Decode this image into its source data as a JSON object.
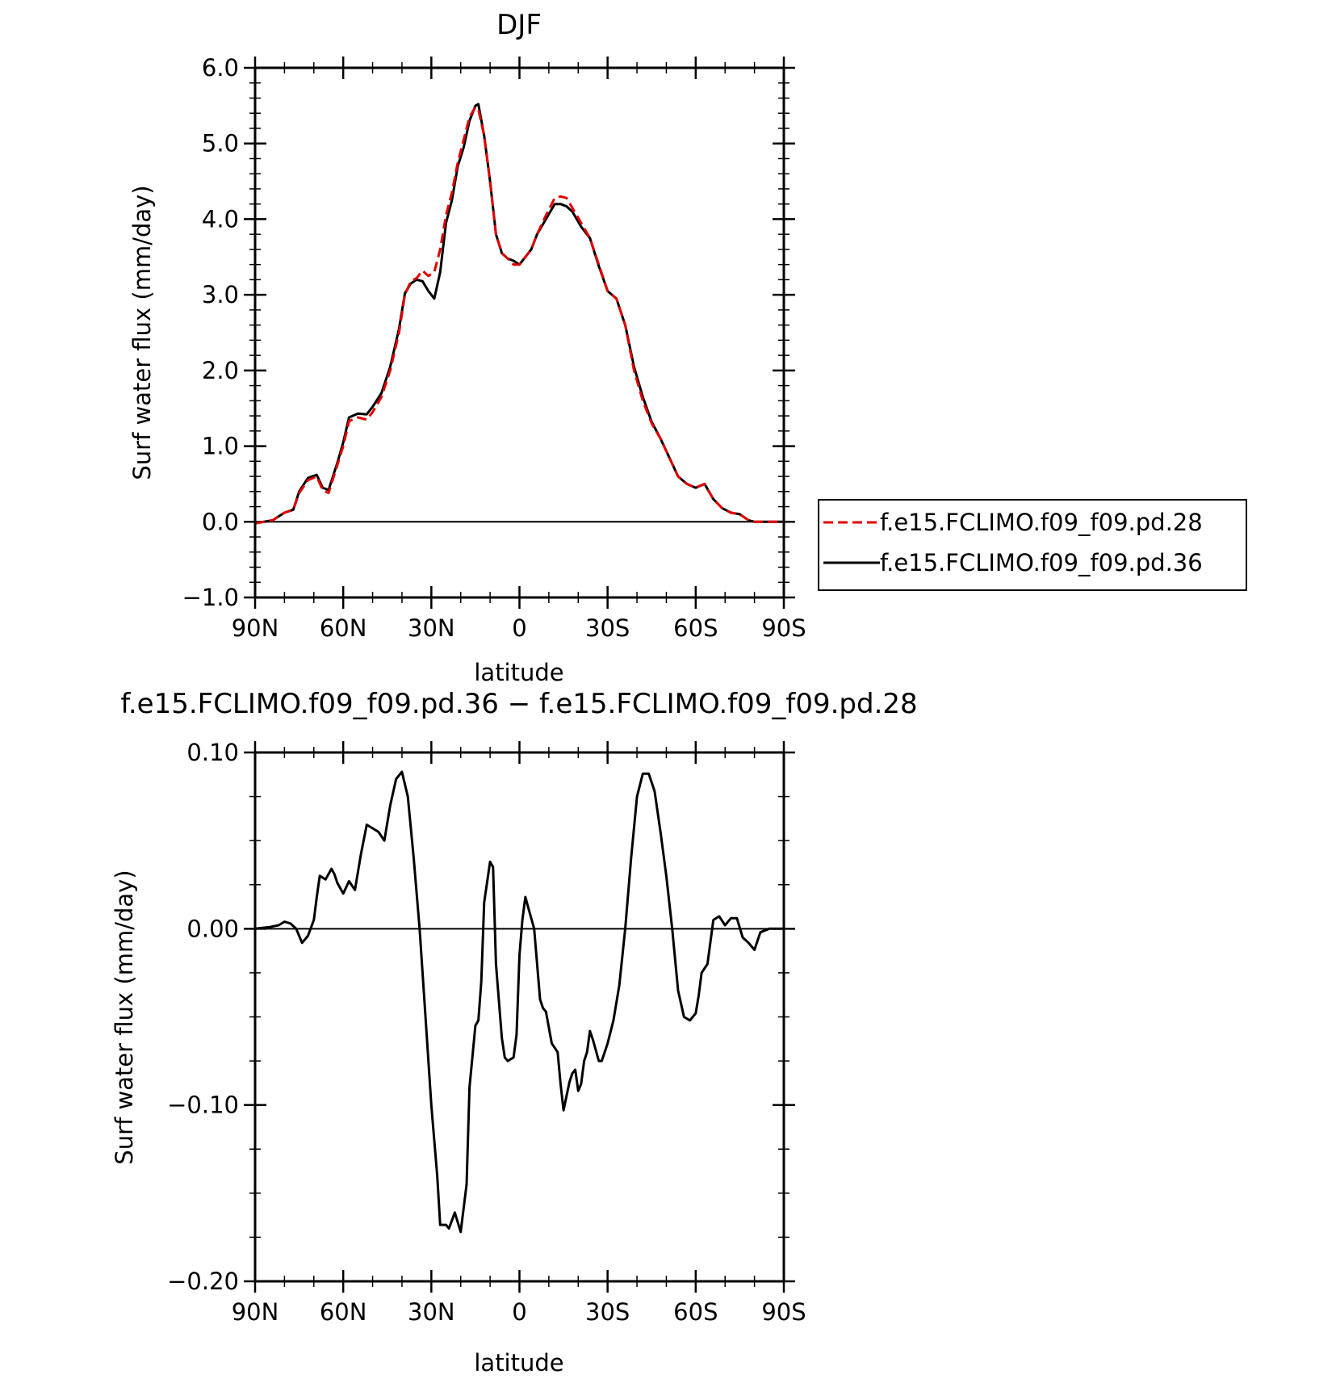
{
  "chart_data": [
    {
      "type": "line",
      "title": "DJF",
      "xlabel": "latitude",
      "ylabel": "Surf water flux (mm/day)",
      "xlim": [
        90,
        -90
      ],
      "ylim": [
        -1.0,
        6.0
      ],
      "yticks": [
        -1.0,
        0.0,
        1.0,
        2.0,
        3.0,
        4.0,
        5.0,
        6.0
      ],
      "ytick_labels": [
        "−1.0",
        "0.0",
        "1.0",
        "2.0",
        "3.0",
        "4.0",
        "5.0",
        "6.0"
      ],
      "xticks": [
        90,
        60,
        30,
        0,
        -30,
        -60,
        -90
      ],
      "xtick_labels": [
        "90N",
        "60N",
        "30N",
        "0",
        "30S",
        "60S",
        "90S"
      ],
      "legend_position": "right",
      "grid": false,
      "series": [
        {
          "name": "f.e15.FCLIMO.f09_f09.pd.28",
          "color": "#e00000",
          "dash": "dashed",
          "x": [
            90,
            84,
            80,
            77,
            75,
            72,
            69,
            67,
            65,
            62,
            60,
            58,
            55,
            52,
            50,
            47,
            44,
            41,
            39,
            37,
            35,
            33,
            31,
            29,
            27,
            25,
            23,
            21,
            19,
            17,
            15,
            14,
            12,
            10,
            8,
            6,
            4,
            2,
            0,
            -2,
            -4,
            -6,
            -9,
            -12,
            -14,
            -16,
            -18,
            -21,
            -24,
            -27,
            -30,
            -33,
            -36,
            -39,
            -42,
            -45,
            -48,
            -51,
            -54,
            -57,
            -60,
            -63,
            -66,
            -69,
            -72,
            -75,
            -78,
            -80,
            -82,
            -90
          ],
          "y": [
            -0.02,
            0.02,
            0.12,
            0.16,
            0.38,
            0.55,
            0.6,
            0.42,
            0.38,
            0.75,
            1.0,
            1.33,
            1.38,
            1.35,
            1.45,
            1.65,
            2.0,
            2.5,
            3.0,
            3.18,
            3.22,
            3.32,
            3.25,
            3.3,
            3.6,
            4.05,
            4.35,
            4.75,
            5.05,
            5.35,
            5.48,
            5.45,
            5.1,
            4.5,
            3.8,
            3.55,
            3.48,
            3.4,
            3.4,
            3.5,
            3.6,
            3.8,
            4.05,
            4.28,
            4.3,
            4.28,
            4.15,
            3.95,
            3.75,
            3.4,
            3.05,
            2.95,
            2.6,
            2.0,
            1.6,
            1.3,
            1.1,
            0.85,
            0.6,
            0.5,
            0.45,
            0.5,
            0.3,
            0.18,
            0.12,
            0.1,
            0.02,
            0.0,
            0.0,
            0.0
          ]
        },
        {
          "name": "f.e15.FCLIMO.f09_f09.pd.36",
          "color": "#000000",
          "dash": "solid",
          "x": [
            90,
            84,
            80,
            77,
            75,
            72,
            69,
            67,
            65,
            62,
            60,
            58,
            55,
            52,
            50,
            47,
            44,
            41,
            39,
            37,
            35,
            33,
            31,
            29,
            27,
            25,
            23,
            21,
            19,
            17,
            15,
            14,
            12,
            10,
            8,
            6,
            4,
            2,
            0,
            -2,
            -4,
            -6,
            -9,
            -12,
            -14,
            -16,
            -18,
            -21,
            -24,
            -27,
            -30,
            -33,
            -36,
            -39,
            -42,
            -45,
            -48,
            -51,
            -54,
            -57,
            -60,
            -63,
            -66,
            -69,
            -72,
            -75,
            -78,
            -80,
            -82,
            -90
          ],
          "y": [
            -0.02,
            0.02,
            0.12,
            0.16,
            0.4,
            0.58,
            0.62,
            0.45,
            0.42,
            0.78,
            1.05,
            1.38,
            1.43,
            1.42,
            1.52,
            1.7,
            2.05,
            2.55,
            3.02,
            3.15,
            3.2,
            3.18,
            3.05,
            2.95,
            3.3,
            3.95,
            4.25,
            4.7,
            4.95,
            5.3,
            5.5,
            5.52,
            5.1,
            4.5,
            3.8,
            3.55,
            3.48,
            3.45,
            3.4,
            3.5,
            3.6,
            3.8,
            4.0,
            4.2,
            4.2,
            4.17,
            4.1,
            3.9,
            3.75,
            3.38,
            3.05,
            2.95,
            2.6,
            2.05,
            1.65,
            1.32,
            1.1,
            0.85,
            0.6,
            0.5,
            0.45,
            0.5,
            0.3,
            0.18,
            0.12,
            0.1,
            0.02,
            0.0,
            0.0,
            0.0
          ]
        }
      ]
    },
    {
      "type": "line",
      "title": "f.e15.FCLIMO.f09_f09.pd.36 − f.e15.FCLIMO.f09_f09.pd.28",
      "xlabel": "latitude",
      "ylabel": "Surf water flux (mm/day)",
      "xlim": [
        90,
        -90
      ],
      "ylim": [
        -0.2,
        0.1
      ],
      "yticks": [
        -0.2,
        -0.1,
        0.0,
        0.1
      ],
      "ytick_labels": [
        "−0.20",
        "−0.10",
        "0.00",
        "0.10"
      ],
      "xticks": [
        90,
        60,
        30,
        0,
        -30,
        -60,
        -90
      ],
      "xtick_labels": [
        "90N",
        "60N",
        "30N",
        "0",
        "30S",
        "60S",
        "90S"
      ],
      "grid": false,
      "series": [
        {
          "color": "#000000",
          "dash": "solid",
          "x": [
            90,
            85,
            82,
            80,
            78,
            76,
            74,
            72,
            70,
            69,
            68,
            66,
            64,
            63,
            62,
            60,
            58,
            56,
            54,
            52,
            50,
            49,
            48,
            46,
            44,
            42,
            40,
            38,
            36,
            34,
            32,
            30,
            28,
            27,
            26,
            25,
            24,
            22,
            20,
            18,
            17,
            15,
            14,
            13,
            12,
            10,
            9,
            8,
            6,
            5,
            4,
            2,
            1,
            0,
            -1,
            -2,
            -3,
            -5,
            -7,
            -8,
            -9,
            -11,
            -13,
            -14,
            -15,
            -17,
            -18,
            -19,
            -20,
            -21,
            -22,
            -23,
            -24,
            -25,
            -27,
            -28,
            -30,
            -32,
            -34,
            -36,
            -38,
            -40,
            -42,
            -44,
            -46,
            -48,
            -50,
            -52,
            -54,
            -56,
            -58,
            -60,
            -61,
            -62,
            -64,
            -66,
            -68,
            -70,
            -72,
            -74,
            -76,
            -78,
            -80,
            -82,
            -85,
            -90
          ],
          "y": [
            0.0,
            0.001,
            0.002,
            0.004,
            0.003,
            0.0,
            -0.008,
            -0.004,
            0.005,
            0.018,
            0.03,
            0.028,
            0.034,
            0.031,
            0.026,
            0.02,
            0.027,
            0.022,
            0.042,
            0.059,
            0.057,
            0.056,
            0.055,
            0.05,
            0.07,
            0.085,
            0.089,
            0.075,
            0.04,
            0.0,
            -0.05,
            -0.1,
            -0.14,
            -0.168,
            -0.168,
            -0.168,
            -0.17,
            -0.161,
            -0.172,
            -0.145,
            -0.09,
            -0.055,
            -0.052,
            -0.03,
            0.015,
            0.038,
            0.035,
            -0.02,
            -0.062,
            -0.073,
            -0.075,
            -0.073,
            -0.06,
            -0.015,
            0.005,
            0.018,
            0.012,
            0.0,
            -0.04,
            -0.045,
            -0.047,
            -0.065,
            -0.07,
            -0.088,
            -0.103,
            -0.087,
            -0.082,
            -0.08,
            -0.092,
            -0.088,
            -0.075,
            -0.07,
            -0.058,
            -0.063,
            -0.075,
            -0.075,
            -0.065,
            -0.052,
            -0.032,
            0.0,
            0.04,
            0.075,
            0.088,
            0.088,
            0.078,
            0.055,
            0.03,
            0.0,
            -0.035,
            -0.05,
            -0.052,
            -0.048,
            -0.038,
            -0.025,
            -0.02,
            0.005,
            0.007,
            0.002,
            0.006,
            0.006,
            -0.005,
            -0.008,
            -0.012,
            -0.002,
            0.0,
            0.0
          ]
        }
      ]
    }
  ]
}
